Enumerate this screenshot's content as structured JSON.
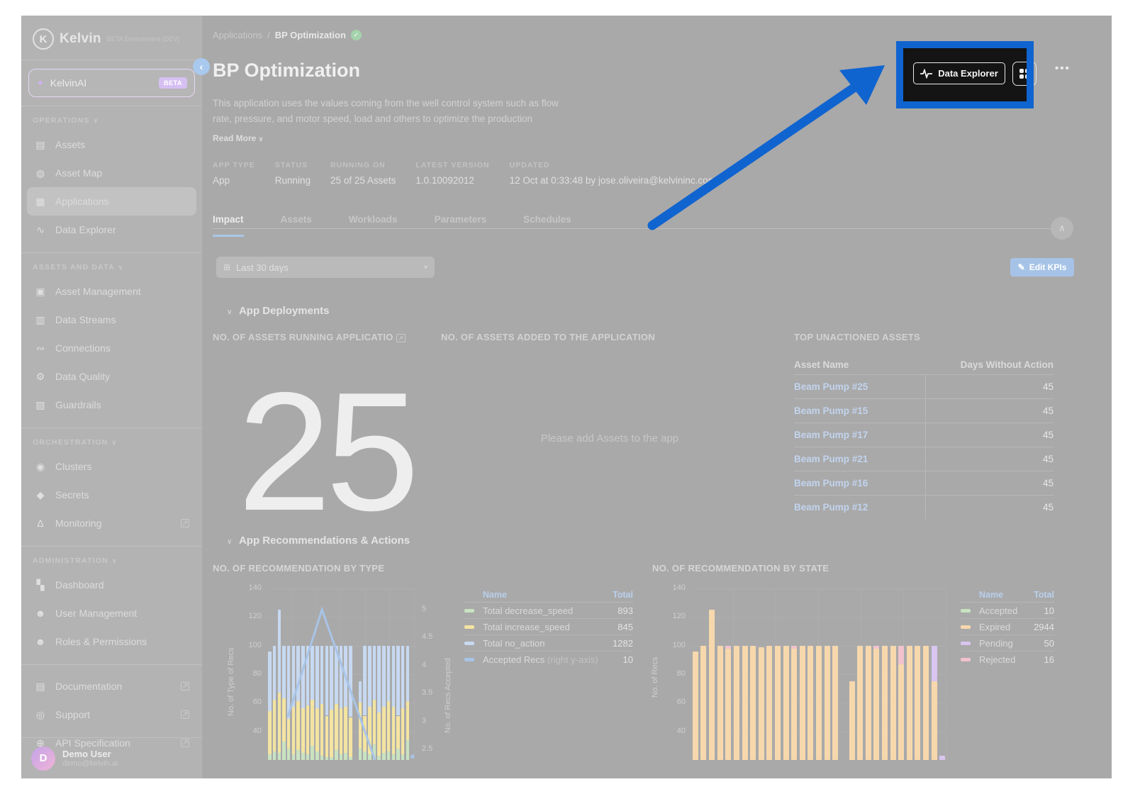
{
  "colors": {
    "canvas_bg": "#a9a9a9",
    "sidebar_bg": "#b3b3b3",
    "accent_blue": "#1064d0",
    "link_blue": "#c2d3ee",
    "edit_btn_bg": "#a6c3e7",
    "bar_green": "#c9e3c1",
    "bar_yellow": "#f4e4a1",
    "bar_blue": "#c7d9f1",
    "bar_orange": "#f7d8ad",
    "bar_pink": "#f1c2ce",
    "bar_purple": "#d9c5f0",
    "line_blue": "#a8c4e7"
  },
  "sidebar": {
    "logo": {
      "initial": "K",
      "name": "Kelvin",
      "env": "BETA Environment (DEV)"
    },
    "ai_item": {
      "label": "KelvinAI",
      "badge": "BETA"
    },
    "sections": [
      {
        "title": "OPERATIONS",
        "items": [
          {
            "label": "Assets",
            "icon": "assets-icon"
          },
          {
            "label": "Asset Map",
            "icon": "asset-map-icon"
          },
          {
            "label": "Applications",
            "icon": "applications-icon",
            "active": true
          },
          {
            "label": "Data Explorer",
            "icon": "data-explorer-icon"
          }
        ]
      },
      {
        "title": "ASSETS AND DATA",
        "items": [
          {
            "label": "Asset Management",
            "icon": "asset-management-icon"
          },
          {
            "label": "Data Streams",
            "icon": "data-streams-icon"
          },
          {
            "label": "Connections",
            "icon": "connections-icon"
          },
          {
            "label": "Data Quality",
            "icon": "data-quality-icon"
          },
          {
            "label": "Guardrails",
            "icon": "guardrails-icon"
          }
        ]
      },
      {
        "title": "ORCHESTRATION",
        "items": [
          {
            "label": "Clusters",
            "icon": "clusters-icon"
          },
          {
            "label": "Secrets",
            "icon": "secrets-icon"
          },
          {
            "label": "Monitoring",
            "icon": "monitoring-icon",
            "external": true
          }
        ]
      },
      {
        "title": "ADMINISTRATION",
        "items": [
          {
            "label": "Dashboard",
            "icon": "dashboard-icon"
          },
          {
            "label": "User Management",
            "icon": "user-management-icon"
          },
          {
            "label": "Roles & Permissions",
            "icon": "roles-permissions-icon"
          }
        ]
      },
      {
        "title": "",
        "items": [
          {
            "label": "Documentation",
            "icon": "documentation-icon",
            "external": true
          },
          {
            "label": "Support",
            "icon": "support-icon",
            "external": true
          },
          {
            "label": "API Specification",
            "icon": "api-specification-icon",
            "external": true
          }
        ]
      }
    ],
    "user": {
      "initial": "D",
      "name": "Demo User",
      "email": "demo@kelvin.ai"
    }
  },
  "breadcrumb": {
    "parent": "Applications",
    "separator": "/",
    "current": "BP Optimization"
  },
  "header": {
    "title": "BP Optimization",
    "description_lines": [
      "This application uses the values coming from the well control system such as flow",
      "rate, pressure, and motor speed, load and others to optimize the production"
    ],
    "read_more": "Read More",
    "actions": {
      "data_explorer": "Data Explorer",
      "more": "•••"
    }
  },
  "info_fields": [
    {
      "label": "APP TYPE",
      "value": "App"
    },
    {
      "label": "STATUS",
      "value": "Running"
    },
    {
      "label": "RUNNING ON",
      "value": "25 of 25 Assets"
    },
    {
      "label": "LATEST VERSION",
      "value": "1.0.10092012"
    },
    {
      "label": "UPDATED",
      "value": "12 Oct at 0:33:48 by jose.oliveira@kelvininc.com"
    }
  ],
  "tabs": [
    {
      "label": "Impact",
      "active": true
    },
    {
      "label": "Assets"
    },
    {
      "label": "Workloads"
    },
    {
      "label": "Parameters"
    },
    {
      "label": "Schedules"
    }
  ],
  "filters": {
    "date_range": "Last 30 days",
    "edit_kpis": "Edit KPIs"
  },
  "deployments": {
    "section_title": "App Deployments",
    "panel1_title": "NO. OF ASSETS RUNNING APPLICATIO",
    "panel1_value": "25",
    "panel2_title": "NO. OF ASSETS ADDED TO THE APPLICATION",
    "panel2_empty": "Please add Assets to the app",
    "panel3_title": "TOP UNACTIONED ASSETS",
    "table": {
      "columns": [
        "Asset Name",
        "Days Without Action"
      ],
      "rows": [
        [
          "Beam Pump #25",
          "45"
        ],
        [
          "Beam Pump #15",
          "45"
        ],
        [
          "Beam Pump #17",
          "45"
        ],
        [
          "Beam Pump #21",
          "45"
        ],
        [
          "Beam Pump #16",
          "45"
        ],
        [
          "Beam Pump #12",
          "45"
        ]
      ]
    }
  },
  "recommendations": {
    "section_title": "App Recommendations & Actions"
  },
  "chart_data": [
    {
      "id": "chart1",
      "type": "bar",
      "title": "NO. OF RECOMMENDATION BY TYPE",
      "ylabel": "No. of Type of Recs",
      "y2label": "No. of Recs Accepted",
      "yticks": [
        140,
        120,
        100,
        80,
        60,
        40
      ],
      "y2ticks": [
        5,
        4.5,
        4,
        3.5,
        3,
        2.5
      ],
      "ylim_visible": [
        20,
        140
      ],
      "stacks": [
        {
          "color": "bar_green",
          "tops": [
            24,
            26,
            25,
            33,
            28,
            24,
            27,
            25,
            24,
            30,
            26,
            23,
            22,
            22,
            27,
            24,
            25,
            22,
            0,
            28,
            26,
            24,
            31,
            23,
            25,
            26,
            24,
            28,
            24,
            34,
            0
          ]
        },
        {
          "color": "bar_yellow",
          "tops": [
            54,
            62,
            67,
            63,
            49,
            57,
            61,
            56,
            58,
            62,
            56,
            59,
            51,
            55,
            59,
            56,
            57,
            50,
            0,
            60,
            51,
            57,
            62,
            53,
            57,
            61,
            57,
            51,
            56,
            61,
            0
          ]
        },
        {
          "color": "bar_blue",
          "tops": [
            96,
            100,
            125,
            100,
            100,
            100,
            100,
            100,
            100,
            100,
            100,
            100,
            100,
            100,
            100,
            100,
            100,
            100,
            0,
            75,
            100,
            100,
            100,
            100,
            100,
            100,
            100,
            100,
            100,
            100,
            0
          ]
        }
      ],
      "line": {
        "name": "Accepted Recs",
        "axis": "right",
        "x": [
          3.8,
          11,
          23
        ],
        "v": [
          3.08,
          5.0,
          2.1
        ],
        "marker": {
          "x": 30,
          "v": 2.37
        }
      },
      "legend": {
        "columns": [
          "Name",
          "Total"
        ],
        "rows": [
          {
            "swatch": "bar_green",
            "name": "Total decrease_speed",
            "total": "893"
          },
          {
            "swatch": "bar_yellow",
            "name": "Total increase_speed",
            "total": "845"
          },
          {
            "swatch": "bar_blue",
            "name": "Total no_action",
            "total": "1282"
          },
          {
            "swatch": "line_blue",
            "name": "Accepted Recs",
            "note": "(right y-axis)",
            "total": "10"
          }
        ]
      }
    },
    {
      "id": "chart2",
      "type": "bar",
      "title": "NO. OF RECOMMENDATION BY STATE",
      "ylabel": "No. of Recs",
      "yticks": [
        140,
        120,
        100,
        80,
        60,
        40
      ],
      "ylim_visible": [
        20,
        140
      ],
      "stacks": [
        {
          "color": "bar_orange",
          "tops": [
            96,
            100,
            125,
            100,
            98,
            100,
            100,
            100,
            99,
            100,
            100,
            100,
            98,
            100,
            100,
            100,
            100,
            100,
            0,
            75,
            100,
            100,
            98,
            100,
            100,
            87,
            100,
            100,
            100,
            75,
            0
          ]
        },
        {
          "color": "bar_pink",
          "tops": [
            96,
            100,
            125,
            100,
            100,
            100,
            100,
            100,
            99,
            100,
            100,
            100,
            100,
            100,
            100,
            100,
            100,
            100,
            0,
            75,
            100,
            100,
            100,
            100,
            100,
            100,
            100,
            100,
            100,
            75,
            0
          ]
        },
        {
          "color": "bar_purple",
          "tops": [
            96,
            100,
            125,
            100,
            100,
            100,
            100,
            100,
            99,
            100,
            100,
            100,
            100,
            100,
            100,
            100,
            100,
            100,
            0,
            75,
            100,
            100,
            100,
            100,
            100,
            100,
            100,
            100,
            100,
            100,
            23
          ]
        }
      ],
      "legend": {
        "columns": [
          "Name",
          "Total"
        ],
        "rows": [
          {
            "swatch": "bar_green",
            "name": "Accepted",
            "total": "10"
          },
          {
            "swatch": "bar_orange",
            "name": "Expired",
            "total": "2944"
          },
          {
            "swatch": "bar_purple",
            "name": "Pending",
            "total": "50"
          },
          {
            "swatch": "bar_pink",
            "name": "Rejected",
            "total": "16"
          }
        ]
      }
    }
  ]
}
